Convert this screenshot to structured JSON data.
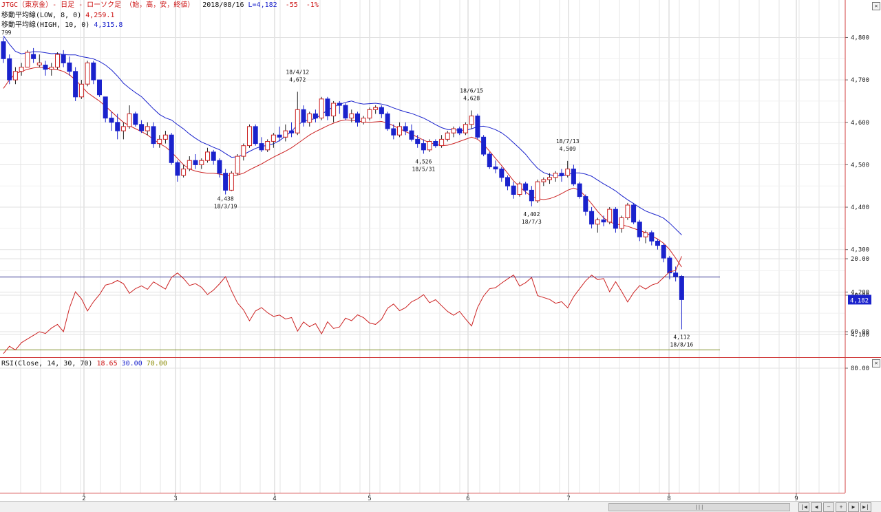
{
  "header": {
    "symbol_line": "JTGC（東京金）- 日足 - ローソク足 （始，高，安，終値）",
    "date": "2018/08/16",
    "last_label": "L=4,182",
    "change": "-55",
    "change_pct": "-1%",
    "ma_low_label": "移動平均線(LOW, 8, 0)",
    "ma_low_value": "4,259.1",
    "ma_high_label": "移動平均線(HIGH, 10, 0)",
    "ma_high_value": "4,315.8"
  },
  "rsi_header": {
    "label": "RSI(Close, 14, 30, 70)",
    "value": "18.65",
    "low": "30.00",
    "high": "70.00"
  },
  "price_axis_ticks": [
    "4,800",
    "4,700",
    "4,600",
    "4,500",
    "4,400",
    "4,300",
    "4,200",
    "4,100"
  ],
  "rsi_axis_ticks": [
    "80.00",
    "60.00",
    "40.00",
    "20.00"
  ],
  "x_axis_months": [
    "2",
    "3",
    "4",
    "5",
    "6",
    "7",
    "8",
    "9"
  ],
  "last_price_tag": "4,182",
  "top_left_cut_label": "799",
  "annotations": [
    {
      "date": "18/3/19",
      "price": "4,438",
      "kind": "low"
    },
    {
      "date": "18/4/12",
      "price": "4,672",
      "kind": "high"
    },
    {
      "date": "18/5/31",
      "price": "4,526",
      "kind": "low"
    },
    {
      "date": "18/6/15",
      "price": "4,628",
      "kind": "high"
    },
    {
      "date": "18/7/3",
      "price": "4,402",
      "kind": "low"
    },
    {
      "date": "18/7/13",
      "price": "4,509",
      "kind": "high"
    },
    {
      "date": "18/8/16",
      "price": "4,112",
      "kind": "low"
    }
  ],
  "colors": {
    "up": "#cc2222",
    "down": "#1a22cc",
    "ma_low": "#cc2222",
    "ma_high": "#1a22cc",
    "rsi_line": "#cc2222",
    "rsi_upper": "#7a8a20",
    "rsi_lower": "#2a2a8a",
    "frame": "#d24040"
  },
  "chart_data": {
    "type": "candlestick",
    "price_range": [
      4080,
      4830
    ],
    "rsi_range": [
      14,
      84
    ],
    "candles": [
      [
        4790,
        4800,
        4740,
        4750
      ],
      [
        4750,
        4760,
        4690,
        4700
      ],
      [
        4700,
        4730,
        4690,
        4720
      ],
      [
        4720,
        4740,
        4710,
        4730
      ],
      [
        4730,
        4770,
        4730,
        4765
      ],
      [
        4760,
        4775,
        4740,
        4750
      ],
      [
        4735,
        4760,
        4730,
        4740
      ],
      [
        4735,
        4745,
        4710,
        4725
      ],
      [
        4725,
        4740,
        4710,
        4730
      ],
      [
        4730,
        4765,
        4725,
        4760
      ],
      [
        4760,
        4770,
        4730,
        4740
      ],
      [
        4740,
        4755,
        4710,
        4720
      ],
      [
        4720,
        4730,
        4650,
        4660
      ],
      [
        4660,
        4700,
        4655,
        4690
      ],
      [
        4690,
        4745,
        4685,
        4740
      ],
      [
        4740,
        4745,
        4690,
        4700
      ],
      [
        4700,
        4700,
        4660,
        4665
      ],
      [
        4660,
        4660,
        4600,
        4610
      ],
      [
        4610,
        4625,
        4580,
        4600
      ],
      [
        4600,
        4620,
        4560,
        4580
      ],
      [
        4580,
        4600,
        4560,
        4590
      ],
      [
        4590,
        4640,
        4585,
        4620
      ],
      [
        4620,
        4625,
        4590,
        4595
      ],
      [
        4595,
        4605,
        4575,
        4580
      ],
      [
        4580,
        4600,
        4570,
        4590
      ],
      [
        4590,
        4600,
        4540,
        4550
      ],
      [
        4550,
        4570,
        4540,
        4560
      ],
      [
        4560,
        4580,
        4550,
        4570
      ],
      [
        4570,
        4575,
        4500,
        4505
      ],
      [
        4505,
        4510,
        4460,
        4475
      ],
      [
        4475,
        4500,
        4470,
        4490
      ],
      [
        4490,
        4520,
        4485,
        4510
      ],
      [
        4510,
        4525,
        4490,
        4500
      ],
      [
        4500,
        4515,
        4490,
        4510
      ],
      [
        4510,
        4540,
        4505,
        4530
      ],
      [
        4530,
        4535,
        4500,
        4510
      ],
      [
        4510,
        4515,
        4470,
        4480
      ],
      [
        4480,
        4490,
        4430,
        4440
      ],
      [
        4440,
        4485,
        4438,
        4480
      ],
      [
        4480,
        4525,
        4475,
        4520
      ],
      [
        4520,
        4550,
        4510,
        4545
      ],
      [
        4545,
        4595,
        4540,
        4590
      ],
      [
        4590,
        4595,
        4545,
        4550
      ],
      [
        4550,
        4565,
        4530,
        4535
      ],
      [
        4535,
        4560,
        4530,
        4555
      ],
      [
        4555,
        4575,
        4540,
        4570
      ],
      [
        4570,
        4590,
        4555,
        4565
      ],
      [
        4565,
        4595,
        4555,
        4580
      ],
      [
        4580,
        4600,
        4565,
        4575
      ],
      [
        4575,
        4672,
        4570,
        4630
      ],
      [
        4630,
        4640,
        4590,
        4600
      ],
      [
        4600,
        4625,
        4590,
        4620
      ],
      [
        4620,
        4630,
        4600,
        4610
      ],
      [
        4610,
        4660,
        4605,
        4655
      ],
      [
        4655,
        4660,
        4605,
        4615
      ],
      [
        4615,
        4650,
        4600,
        4645
      ],
      [
        4645,
        4650,
        4620,
        4640
      ],
      [
        4640,
        4645,
        4605,
        4610
      ],
      [
        4610,
        4630,
        4600,
        4620
      ],
      [
        4620,
        4625,
        4590,
        4600
      ],
      [
        4600,
        4615,
        4595,
        4610
      ],
      [
        4610,
        4635,
        4605,
        4630
      ],
      [
        4630,
        4640,
        4620,
        4635
      ],
      [
        4635,
        4640,
        4610,
        4620
      ],
      [
        4620,
        4625,
        4580,
        4585
      ],
      [
        4585,
        4595,
        4560,
        4570
      ],
      [
        4570,
        4600,
        4565,
        4590
      ],
      [
        4590,
        4600,
        4570,
        4580
      ],
      [
        4580,
        4595,
        4555,
        4560
      ],
      [
        4560,
        4570,
        4540,
        4550
      ],
      [
        4550,
        4560,
        4526,
        4535
      ],
      [
        4535,
        4560,
        4530,
        4555
      ],
      [
        4555,
        4560,
        4540,
        4545
      ],
      [
        4545,
        4570,
        4540,
        4560
      ],
      [
        4560,
        4580,
        4555,
        4575
      ],
      [
        4575,
        4590,
        4565,
        4585
      ],
      [
        4585,
        4590,
        4570,
        4575
      ],
      [
        4575,
        4600,
        4570,
        4595
      ],
      [
        4595,
        4628,
        4585,
        4615
      ],
      [
        4615,
        4620,
        4560,
        4565
      ],
      [
        4565,
        4570,
        4520,
        4525
      ],
      [
        4525,
        4530,
        4490,
        4495
      ],
      [
        4495,
        4510,
        4480,
        4490
      ],
      [
        4490,
        4495,
        4460,
        4470
      ],
      [
        4470,
        4475,
        4440,
        4450
      ],
      [
        4450,
        4460,
        4420,
        4430
      ],
      [
        4430,
        4460,
        4425,
        4455
      ],
      [
        4455,
        4460,
        4430,
        4440
      ],
      [
        4440,
        4450,
        4402,
        4415
      ],
      [
        4415,
        4465,
        4410,
        4460
      ],
      [
        4460,
        4470,
        4450,
        4465
      ],
      [
        4465,
        4480,
        4455,
        4470
      ],
      [
        4470,
        4485,
        4460,
        4480
      ],
      [
        4480,
        4490,
        4460,
        4475
      ],
      [
        4475,
        4509,
        4470,
        4490
      ],
      [
        4490,
        4500,
        4450,
        4455
      ],
      [
        4455,
        4460,
        4420,
        4425
      ],
      [
        4425,
        4430,
        4380,
        4390
      ],
      [
        4390,
        4400,
        4350,
        4360
      ],
      [
        4360,
        4375,
        4340,
        4370
      ],
      [
        4370,
        4380,
        4355,
        4365
      ],
      [
        4365,
        4400,
        4360,
        4395
      ],
      [
        4395,
        4400,
        4340,
        4350
      ],
      [
        4350,
        4380,
        4340,
        4375
      ],
      [
        4375,
        4410,
        4370,
        4405
      ],
      [
        4405,
        4410,
        4360,
        4365
      ],
      [
        4365,
        4370,
        4320,
        4330
      ],
      [
        4330,
        4345,
        4315,
        4340
      ],
      [
        4340,
        4345,
        4310,
        4320
      ],
      [
        4320,
        4325,
        4300,
        4310
      ],
      [
        4310,
        4315,
        4270,
        4280
      ],
      [
        4280,
        4285,
        4230,
        4245
      ],
      [
        4245,
        4260,
        4225,
        4237
      ],
      [
        4237,
        4240,
        4112,
        4182
      ]
    ],
    "ma_low": [
      4680,
      4700,
      4715,
      4720,
      4725,
      4728,
      4730,
      4728,
      4726,
      4724,
      4720,
      4712,
      4700,
      4685,
      4670,
      4660,
      4650,
      4638,
      4625,
      4612,
      4600,
      4592,
      4585,
      4578,
      4570,
      4560,
      4550,
      4542,
      4530,
      4515,
      4500,
      4490,
      4485,
      4482,
      4480,
      4480,
      4478,
      4475,
      4474,
      4476,
      4480,
      4488,
      4495,
      4502,
      4510,
      4518,
      4525,
      4532,
      4540,
      4550,
      4560,
      4570,
      4578,
      4585,
      4592,
      4598,
      4603,
      4606,
      4605,
      4603,
      4601,
      4600,
      4601,
      4602,
      4598,
      4592,
      4585,
      4578,
      4572,
      4565,
      4558,
      4552,
      4548,
      4545,
      4546,
      4550,
      4555,
      4560,
      4565,
      4560,
      4548,
      4532,
      4515,
      4498,
      4480,
      4462,
      4448,
      4436,
      4425,
      4420,
      4418,
      4420,
      4425,
      4432,
      4440,
      4445,
      4440,
      4425,
      4408,
      4390,
      4375,
      4365,
      4360,
      4358,
      4355,
      4350,
      4345,
      4340,
      4332,
      4325,
      4315,
      4300,
      4280,
      4259
    ]
  }
}
